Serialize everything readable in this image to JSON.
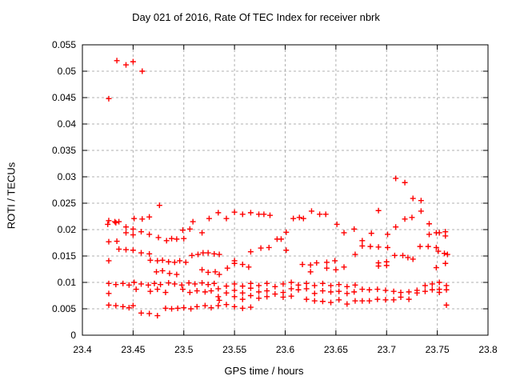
{
  "chart_data": {
    "type": "scatter",
    "title": "Day 021 of 2016, Rate Of TEC Index for receiver nbrk",
    "xlabel": "GPS time / hours",
    "ylabel": "ROTI / TECUs",
    "xlim": [
      23.4,
      23.8
    ],
    "ylim": [
      0,
      0.055
    ],
    "x_ticks": [
      23.4,
      23.45,
      23.5,
      23.55,
      23.6,
      23.65,
      23.7,
      23.75,
      23.8
    ],
    "x_tick_labels": [
      "23.4",
      "23.45",
      "23.5",
      "23.55",
      "23.6",
      "23.65",
      "23.7",
      "23.75",
      "23.8"
    ],
    "y_ticks": [
      0,
      0.005,
      0.01,
      0.015,
      0.02,
      0.025,
      0.03,
      0.035,
      0.04,
      0.045,
      0.05,
      0.055
    ],
    "y_tick_labels": [
      "0",
      "0.005",
      "0.01",
      "0.015",
      "0.02",
      "0.025",
      "0.03",
      "0.035",
      "0.04",
      "0.045",
      "0.05",
      "0.055"
    ],
    "grid": true,
    "legend_position": "none",
    "marker": {
      "shape": "plus",
      "size": 7,
      "color": "#ff0000"
    },
    "colors": {
      "background": "#ffffff",
      "text": "#000000",
      "grid": "#b0b0b0",
      "border": "#000000",
      "points": "#ff0000"
    },
    "series": [
      {
        "name": "ROTI",
        "points": [
          [
            23.434,
            0.052
          ],
          [
            23.443,
            0.0512
          ],
          [
            23.45,
            0.0518
          ],
          [
            23.459,
            0.05
          ],
          [
            23.426,
            0.0448
          ],
          [
            23.476,
            0.0246
          ],
          [
            23.709,
            0.0297
          ],
          [
            23.718,
            0.0289
          ],
          [
            23.726,
            0.0259
          ],
          [
            23.734,
            0.0255
          ],
          [
            23.426,
            0.0217
          ],
          [
            23.432,
            0.0215
          ],
          [
            23.436,
            0.0215
          ],
          [
            23.451,
            0.0221
          ],
          [
            23.459,
            0.022
          ],
          [
            23.466,
            0.0224
          ],
          [
            23.509,
            0.0215
          ],
          [
            23.525,
            0.0221
          ],
          [
            23.534,
            0.0232
          ],
          [
            23.542,
            0.0221
          ],
          [
            23.55,
            0.0233
          ],
          [
            23.558,
            0.0229
          ],
          [
            23.566,
            0.0232
          ],
          [
            23.574,
            0.0229
          ],
          [
            23.579,
            0.0229
          ],
          [
            23.585,
            0.0227
          ],
          [
            23.608,
            0.0221
          ],
          [
            23.614,
            0.0223
          ],
          [
            23.618,
            0.0221
          ],
          [
            23.626,
            0.0235
          ],
          [
            23.634,
            0.0229
          ],
          [
            23.64,
            0.0229
          ],
          [
            23.651,
            0.021
          ],
          [
            23.692,
            0.0236
          ],
          [
            23.718,
            0.022
          ],
          [
            23.725,
            0.0223
          ],
          [
            23.734,
            0.0235
          ],
          [
            23.742,
            0.0211
          ],
          [
            23.425,
            0.021
          ],
          [
            23.433,
            0.0213
          ],
          [
            23.443,
            0.0205
          ],
          [
            23.45,
            0.0201
          ],
          [
            23.443,
            0.0194
          ],
          [
            23.45,
            0.019
          ],
          [
            23.458,
            0.0196
          ],
          [
            23.466,
            0.0191
          ],
          [
            23.475,
            0.0185
          ],
          [
            23.483,
            0.0179
          ],
          [
            23.488,
            0.0183
          ],
          [
            23.493,
            0.0182
          ],
          [
            23.499,
            0.0199
          ],
          [
            23.5,
            0.0183
          ],
          [
            23.506,
            0.0201
          ],
          [
            23.518,
            0.0194
          ],
          [
            23.592,
            0.0182
          ],
          [
            23.596,
            0.0182
          ],
          [
            23.601,
            0.0195
          ],
          [
            23.658,
            0.0194
          ],
          [
            23.668,
            0.0201
          ],
          [
            23.685,
            0.0193
          ],
          [
            23.701,
            0.0191
          ],
          [
            23.709,
            0.0205
          ],
          [
            23.742,
            0.0191
          ],
          [
            23.749,
            0.0194
          ],
          [
            23.752,
            0.0194
          ],
          [
            23.758,
            0.0196
          ],
          [
            23.758,
            0.0188
          ],
          [
            23.426,
            0.0177
          ],
          [
            23.434,
            0.0178
          ],
          [
            23.436,
            0.0163
          ],
          [
            23.443,
            0.0162
          ],
          [
            23.45,
            0.0161
          ],
          [
            23.458,
            0.0156
          ],
          [
            23.466,
            0.0154
          ],
          [
            23.566,
            0.0158
          ],
          [
            23.576,
            0.0165
          ],
          [
            23.584,
            0.0166
          ],
          [
            23.601,
            0.0161
          ],
          [
            23.676,
            0.0179
          ],
          [
            23.676,
            0.0169
          ],
          [
            23.684,
            0.0168
          ],
          [
            23.692,
            0.0167
          ],
          [
            23.701,
            0.0166
          ],
          [
            23.733,
            0.0168
          ],
          [
            23.741,
            0.0168
          ],
          [
            23.749,
            0.0166
          ],
          [
            23.751,
            0.0159
          ],
          [
            23.757,
            0.0155
          ],
          [
            23.426,
            0.0141
          ],
          [
            23.467,
            0.0142
          ],
          [
            23.474,
            0.0141
          ],
          [
            23.479,
            0.0142
          ],
          [
            23.485,
            0.0139
          ],
          [
            23.491,
            0.0138
          ],
          [
            23.496,
            0.0141
          ],
          [
            23.502,
            0.0138
          ],
          [
            23.508,
            0.0151
          ],
          [
            23.514,
            0.0153
          ],
          [
            23.519,
            0.0156
          ],
          [
            23.524,
            0.0156
          ],
          [
            23.53,
            0.0154
          ],
          [
            23.535,
            0.0153
          ],
          [
            23.543,
            0.0127
          ],
          [
            23.55,
            0.0141
          ],
          [
            23.55,
            0.0136
          ],
          [
            23.558,
            0.0134
          ],
          [
            23.564,
            0.0129
          ],
          [
            23.617,
            0.0134
          ],
          [
            23.625,
            0.0133
          ],
          [
            23.631,
            0.0137
          ],
          [
            23.641,
            0.0138
          ],
          [
            23.649,
            0.0141
          ],
          [
            23.658,
            0.0129
          ],
          [
            23.669,
            0.0153
          ],
          [
            23.692,
            0.0137
          ],
          [
            23.7,
            0.0139
          ],
          [
            23.692,
            0.0131
          ],
          [
            23.7,
            0.0132
          ],
          [
            23.708,
            0.0151
          ],
          [
            23.716,
            0.0151
          ],
          [
            23.721,
            0.0147
          ],
          [
            23.726,
            0.0144
          ],
          [
            23.749,
            0.0128
          ],
          [
            23.758,
            0.0136
          ],
          [
            23.76,
            0.0153
          ],
          [
            23.473,
            0.012
          ],
          [
            23.479,
            0.0122
          ],
          [
            23.486,
            0.0117
          ],
          [
            23.493,
            0.0115
          ],
          [
            23.518,
            0.0124
          ],
          [
            23.524,
            0.0119
          ],
          [
            23.531,
            0.012
          ],
          [
            23.535,
            0.0115
          ],
          [
            23.625,
            0.012
          ],
          [
            23.641,
            0.0127
          ],
          [
            23.65,
            0.0124
          ],
          [
            23.426,
            0.0098
          ],
          [
            23.433,
            0.0096
          ],
          [
            23.44,
            0.0098
          ],
          [
            23.446,
            0.0095
          ],
          [
            23.451,
            0.01
          ],
          [
            23.458,
            0.0097
          ],
          [
            23.465,
            0.0095
          ],
          [
            23.471,
            0.0098
          ],
          [
            23.477,
            0.0096
          ],
          [
            23.485,
            0.0099
          ],
          [
            23.491,
            0.0097
          ],
          [
            23.498,
            0.0095
          ],
          [
            23.505,
            0.0099
          ],
          [
            23.511,
            0.0097
          ],
          [
            23.518,
            0.0099
          ],
          [
            23.524,
            0.0096
          ],
          [
            23.53,
            0.0098
          ],
          [
            23.534,
            0.0088
          ],
          [
            23.542,
            0.0093
          ],
          [
            23.55,
            0.0097
          ],
          [
            23.558,
            0.0093
          ],
          [
            23.566,
            0.0098
          ],
          [
            23.574,
            0.0094
          ],
          [
            23.582,
            0.0098
          ],
          [
            23.59,
            0.0092
          ],
          [
            23.598,
            0.0097
          ],
          [
            23.606,
            0.01
          ],
          [
            23.613,
            0.0095
          ],
          [
            23.621,
            0.0098
          ],
          [
            23.629,
            0.0094
          ],
          [
            23.637,
            0.0098
          ],
          [
            23.645,
            0.0094
          ],
          [
            23.653,
            0.0096
          ],
          [
            23.661,
            0.0092
          ],
          [
            23.669,
            0.0095
          ],
          [
            23.426,
            0.0079
          ],
          [
            23.453,
            0.0087
          ],
          [
            23.467,
            0.0083
          ],
          [
            23.474,
            0.0087
          ],
          [
            23.482,
            0.0081
          ],
          [
            23.499,
            0.0087
          ],
          [
            23.506,
            0.0081
          ],
          [
            23.513,
            0.0084
          ],
          [
            23.521,
            0.0082
          ],
          [
            23.527,
            0.0084
          ],
          [
            23.542,
            0.008
          ],
          [
            23.55,
            0.0085
          ],
          [
            23.558,
            0.008
          ],
          [
            23.566,
            0.0089
          ],
          [
            23.574,
            0.0082
          ],
          [
            23.582,
            0.0084
          ],
          [
            23.59,
            0.0078
          ],
          [
            23.598,
            0.0081
          ],
          [
            23.606,
            0.0088
          ],
          [
            23.613,
            0.0086
          ],
          [
            23.621,
            0.0088
          ],
          [
            23.629,
            0.0079
          ],
          [
            23.637,
            0.0084
          ],
          [
            23.645,
            0.0082
          ],
          [
            23.653,
            0.0083
          ],
          [
            23.661,
            0.0079
          ],
          [
            23.668,
            0.0082
          ],
          [
            23.676,
            0.0087
          ],
          [
            23.683,
            0.0086
          ],
          [
            23.691,
            0.0087
          ],
          [
            23.699,
            0.0085
          ],
          [
            23.707,
            0.0083
          ],
          [
            23.714,
            0.0081
          ],
          [
            23.722,
            0.0082
          ],
          [
            23.73,
            0.0085
          ],
          [
            23.73,
            0.008
          ],
          [
            23.738,
            0.0094
          ],
          [
            23.738,
            0.0083
          ],
          [
            23.745,
            0.0097
          ],
          [
            23.745,
            0.0086
          ],
          [
            23.752,
            0.01
          ],
          [
            23.752,
            0.0087
          ],
          [
            23.752,
            0.0081
          ],
          [
            23.759,
            0.0094
          ],
          [
            23.759,
            0.0086
          ],
          [
            23.534,
            0.0073
          ],
          [
            23.535,
            0.0066
          ],
          [
            23.55,
            0.0073
          ],
          [
            23.558,
            0.0068
          ],
          [
            23.566,
            0.0075
          ],
          [
            23.574,
            0.007
          ],
          [
            23.582,
            0.0073
          ],
          [
            23.598,
            0.0072
          ],
          [
            23.606,
            0.0074
          ],
          [
            23.621,
            0.0068
          ],
          [
            23.629,
            0.0065
          ],
          [
            23.637,
            0.0064
          ],
          [
            23.645,
            0.0062
          ],
          [
            23.653,
            0.0067
          ],
          [
            23.669,
            0.0065
          ],
          [
            23.676,
            0.0065
          ],
          [
            23.683,
            0.0065
          ],
          [
            23.691,
            0.0068
          ],
          [
            23.699,
            0.0067
          ],
          [
            23.707,
            0.0067
          ],
          [
            23.714,
            0.0072
          ],
          [
            23.722,
            0.0068
          ],
          [
            23.426,
            0.0057
          ],
          [
            23.433,
            0.0056
          ],
          [
            23.44,
            0.0054
          ],
          [
            23.446,
            0.0052
          ],
          [
            23.45,
            0.0056
          ],
          [
            23.482,
            0.0051
          ],
          [
            23.488,
            0.005
          ],
          [
            23.494,
            0.0051
          ],
          [
            23.5,
            0.0052
          ],
          [
            23.507,
            0.005
          ],
          [
            23.513,
            0.0054
          ],
          [
            23.521,
            0.0056
          ],
          [
            23.527,
            0.0052
          ],
          [
            23.534,
            0.0056
          ],
          [
            23.542,
            0.0058
          ],
          [
            23.55,
            0.0054
          ],
          [
            23.558,
            0.0051
          ],
          [
            23.566,
            0.0053
          ],
          [
            23.661,
            0.0059
          ],
          [
            23.759,
            0.0057
          ],
          [
            23.458,
            0.0042
          ],
          [
            23.466,
            0.0041
          ],
          [
            23.474,
            0.0037
          ]
        ]
      }
    ]
  }
}
